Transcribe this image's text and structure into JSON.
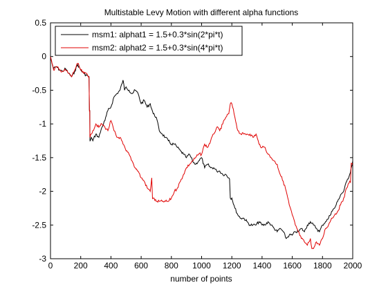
{
  "chart_data": {
    "type": "line",
    "title": "Multistable Levy Motion with different alpha functions",
    "xlabel": "number of points",
    "ylabel": "",
    "xlim": [
      0,
      2000
    ],
    "ylim": [
      -3,
      0.5
    ],
    "xticks": [
      "0",
      "200",
      "400",
      "600",
      "800",
      "1000",
      "1200",
      "1400",
      "1600",
      "1800",
      "2000"
    ],
    "yticks": [
      "0.5",
      "0",
      "-0.5",
      "-1",
      "-1.5",
      "-2",
      "-2.5",
      "-3"
    ],
    "grid": false,
    "legend_position": "top-left",
    "series": [
      {
        "name": "msm1: alphat1 = 1.5+0.3*sin(2*pi*t)",
        "color": "#000000",
        "x": [
          0,
          10,
          20,
          40,
          60,
          80,
          100,
          120,
          140,
          160,
          180,
          200,
          220,
          240,
          255,
          260,
          262,
          270,
          280,
          300,
          320,
          340,
          360,
          380,
          400,
          420,
          440,
          460,
          480,
          490,
          500,
          520,
          540,
          560,
          580,
          600,
          620,
          640,
          660,
          680,
          700,
          720,
          740,
          760,
          780,
          800,
          820,
          840,
          860,
          880,
          900,
          920,
          940,
          960,
          980,
          1000,
          1020,
          1040,
          1060,
          1080,
          1100,
          1120,
          1140,
          1160,
          1180,
          1200,
          1220,
          1240,
          1260,
          1280,
          1300,
          1320,
          1340,
          1360,
          1380,
          1400,
          1420,
          1440,
          1460,
          1480,
          1500,
          1520,
          1540,
          1560,
          1580,
          1600,
          1620,
          1640,
          1660,
          1680,
          1700,
          1720,
          1740,
          1760,
          1780,
          1800,
          1820,
          1840,
          1860,
          1880,
          1900,
          1920,
          1940,
          1960,
          1980,
          2000
        ],
        "values": [
          0,
          -0.1,
          -0.18,
          -0.15,
          -0.2,
          -0.22,
          -0.18,
          -0.25,
          -0.3,
          -0.22,
          -0.12,
          -0.2,
          -0.25,
          -0.28,
          -0.3,
          -0.8,
          -1.25,
          -1.2,
          -1.25,
          -1.15,
          -1.2,
          -1.05,
          -0.95,
          -0.8,
          -0.75,
          -0.6,
          -0.55,
          -0.5,
          -0.35,
          -0.5,
          -0.45,
          -0.5,
          -0.55,
          -0.5,
          -0.55,
          -0.7,
          -0.65,
          -0.75,
          -0.7,
          -0.85,
          -0.9,
          -1.1,
          -1.15,
          -1.2,
          -1.25,
          -1.3,
          -1.3,
          -1.35,
          -1.4,
          -1.45,
          -1.5,
          -1.45,
          -1.55,
          -1.6,
          -1.55,
          -1.5,
          -1.65,
          -1.6,
          -1.65,
          -1.65,
          -1.7,
          -1.7,
          -1.75,
          -1.75,
          -1.8,
          -2.1,
          -2.25,
          -2.35,
          -2.4,
          -2.4,
          -2.45,
          -2.5,
          -2.5,
          -2.5,
          -2.45,
          -2.5,
          -2.5,
          -2.45,
          -2.5,
          -2.55,
          -2.6,
          -2.55,
          -2.6,
          -2.7,
          -2.65,
          -2.65,
          -2.6,
          -2.6,
          -2.55,
          -2.6,
          -2.5,
          -2.45,
          -2.5,
          -2.55,
          -2.6,
          -2.5,
          -2.45,
          -2.4,
          -2.3,
          -2.25,
          -2.15,
          -2.05,
          -2.0,
          -1.85,
          -1.75,
          -1.55
        ]
      },
      {
        "name": "msm2: alphat2 = 1.5+0.3*sin(4*pi*t)",
        "color": "#e00000",
        "x": [
          0,
          10,
          20,
          40,
          60,
          80,
          100,
          120,
          140,
          160,
          180,
          200,
          220,
          240,
          255,
          260,
          262,
          270,
          280,
          300,
          320,
          340,
          360,
          380,
          400,
          420,
          440,
          460,
          480,
          500,
          520,
          540,
          560,
          580,
          600,
          620,
          640,
          660,
          670,
          680,
          700,
          720,
          740,
          760,
          780,
          800,
          820,
          840,
          860,
          880,
          900,
          920,
          940,
          960,
          980,
          1000,
          1020,
          1040,
          1060,
          1080,
          1100,
          1120,
          1140,
          1160,
          1180,
          1190,
          1200,
          1220,
          1240,
          1260,
          1280,
          1300,
          1320,
          1340,
          1360,
          1380,
          1400,
          1420,
          1440,
          1460,
          1480,
          1500,
          1520,
          1540,
          1560,
          1580,
          1600,
          1620,
          1640,
          1660,
          1680,
          1700,
          1720,
          1730,
          1740,
          1760,
          1780,
          1800,
          1820,
          1840,
          1860,
          1880,
          1900,
          1920,
          1940,
          1960,
          1980,
          2000
        ],
        "values": [
          0,
          -0.1,
          -0.2,
          -0.15,
          -0.2,
          -0.22,
          -0.2,
          -0.25,
          -0.3,
          -0.2,
          -0.1,
          -0.2,
          -0.25,
          -0.25,
          -0.3,
          -0.8,
          -1.2,
          -1.15,
          -1.1,
          -1.0,
          -1.05,
          -1.0,
          -1.05,
          -1.1,
          -0.95,
          -1.1,
          -1.2,
          -1.2,
          -1.3,
          -1.4,
          -1.45,
          -1.55,
          -1.65,
          -1.7,
          -1.8,
          -1.85,
          -1.95,
          -2.0,
          -1.8,
          -2.1,
          -2.15,
          -2.15,
          -2.15,
          -2.15,
          -2.15,
          -2.1,
          -2.0,
          -1.95,
          -1.85,
          -1.75,
          -1.65,
          -1.6,
          -1.55,
          -1.5,
          -1.45,
          -1.45,
          -1.3,
          -1.35,
          -1.25,
          -1.15,
          -1.05,
          -1.1,
          -1.0,
          -0.9,
          -0.85,
          -0.7,
          -0.7,
          -0.9,
          -1.1,
          -1.15,
          -1.15,
          -1.15,
          -1.15,
          -1.2,
          -1.15,
          -1.3,
          -1.35,
          -1.35,
          -1.45,
          -1.5,
          -1.55,
          -1.6,
          -1.75,
          -1.85,
          -2.0,
          -2.2,
          -2.35,
          -2.5,
          -2.6,
          -2.7,
          -2.75,
          -2.8,
          -2.7,
          -2.85,
          -2.85,
          -2.75,
          -2.8,
          -2.7,
          -2.55,
          -2.5,
          -2.4,
          -2.35,
          -2.3,
          -2.2,
          -2.1,
          -1.95,
          -1.85,
          -1.6
        ]
      }
    ]
  }
}
